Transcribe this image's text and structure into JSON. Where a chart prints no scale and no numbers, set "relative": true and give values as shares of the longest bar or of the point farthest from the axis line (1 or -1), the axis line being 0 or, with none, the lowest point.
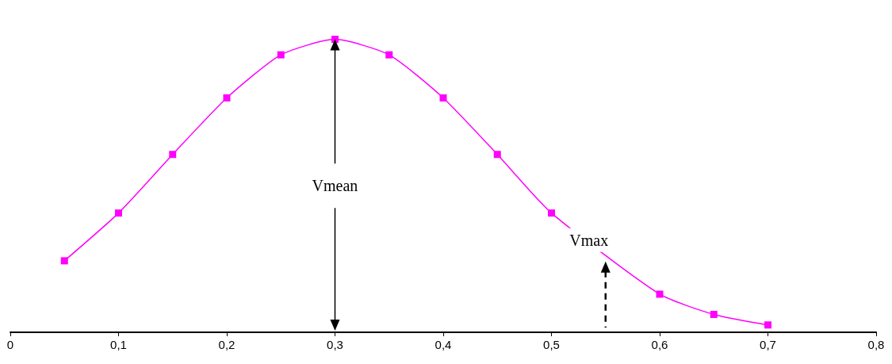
{
  "chart_data": {
    "type": "line",
    "relative": true,
    "x": [
      0.05,
      0.1,
      0.15,
      0.2,
      0.25,
      0.3,
      0.35,
      0.4,
      0.45,
      0.5,
      0.6,
      0.65,
      0.7
    ],
    "series": [
      {
        "color": "#ff00ff",
        "values": [
          0.244,
          0.407,
          0.607,
          0.8,
          0.947,
          1,
          0.947,
          0.8,
          0.607,
          0.407,
          0.13,
          0.061,
          0.025
        ]
      }
    ],
    "xlim": [
      0,
      0.8
    ],
    "xticks": [
      0,
      {
        "value": 0.1,
        "label": "0,1"
      },
      {
        "value": 0.2,
        "label": "0,2"
      },
      {
        "value": 0.3,
        "label": "0,3"
      },
      {
        "value": 0.4,
        "label": "0,4"
      },
      {
        "value": 0.5,
        "label": "0,5"
      },
      {
        "value": 0.6,
        "label": "0,6"
      },
      {
        "value": 0.7,
        "label": "0,7"
      },
      {
        "value": 0.8,
        "label": "0,8"
      }
    ],
    "annotations": [
      "Vmean",
      "Vmax"
    ],
    "marker": "square",
    "line_style": "solid"
  }
}
